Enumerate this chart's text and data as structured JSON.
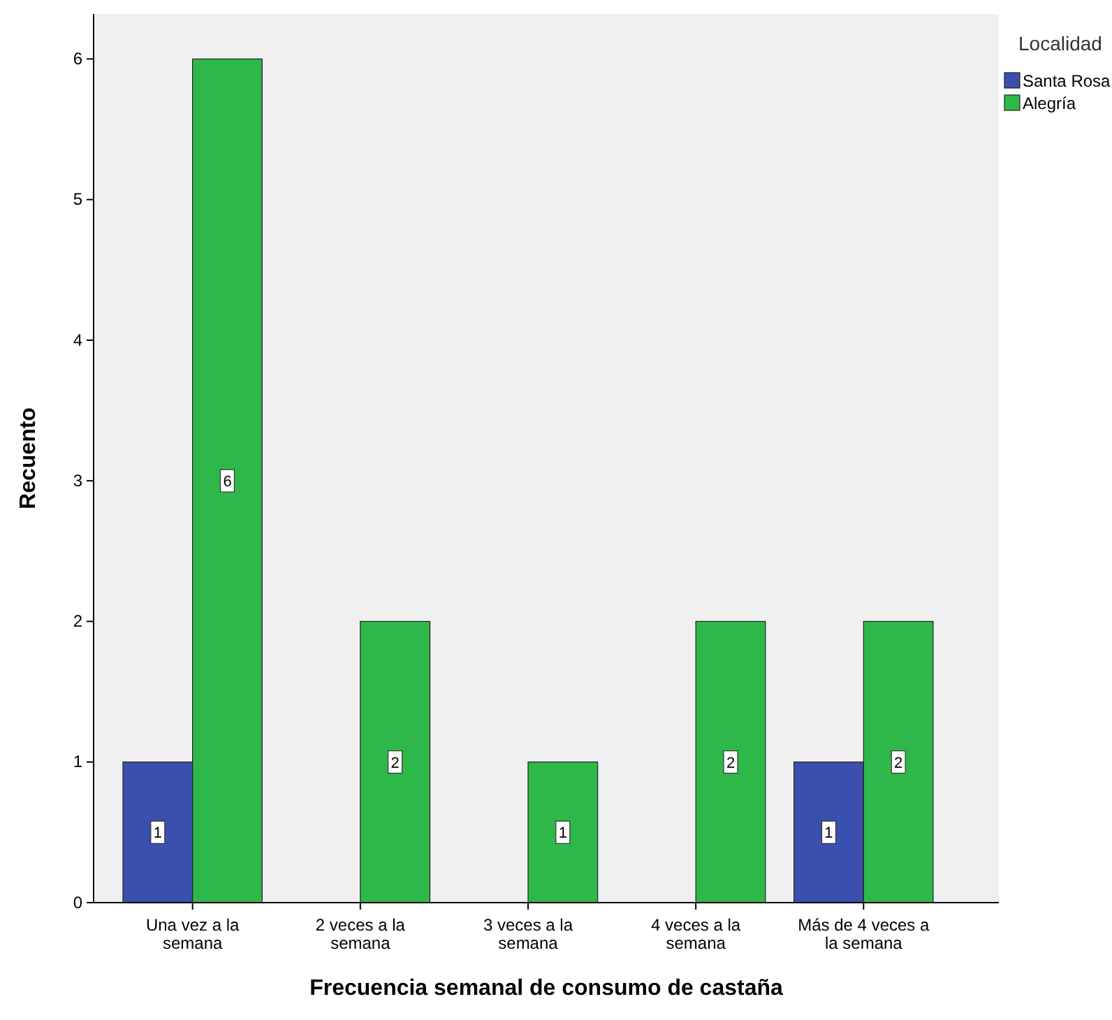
{
  "chart_data": {
    "type": "bar",
    "xlabel": "Frecuencia semanal de consumo de castaña",
    "ylabel": "Recuento",
    "legend_title": "Localidad",
    "categories": [
      "Una vez a la semana",
      "2 veces a la semana",
      "3 veces a la semana",
      "4 veces a la semana",
      "Más de 4 veces a la semana"
    ],
    "series": [
      {
        "name": "Santa Rosa",
        "color": "#3b4fae",
        "values": [
          1,
          null,
          null,
          null,
          1
        ]
      },
      {
        "name": "Alegría",
        "color": "#2fb84a",
        "values": [
          6,
          2,
          1,
          2,
          2
        ]
      }
    ],
    "ylim": [
      0,
      6.32
    ],
    "yticks": [
      0,
      1,
      2,
      3,
      4,
      5,
      6
    ],
    "data_labels": true,
    "legend": "top right",
    "grid": false
  }
}
